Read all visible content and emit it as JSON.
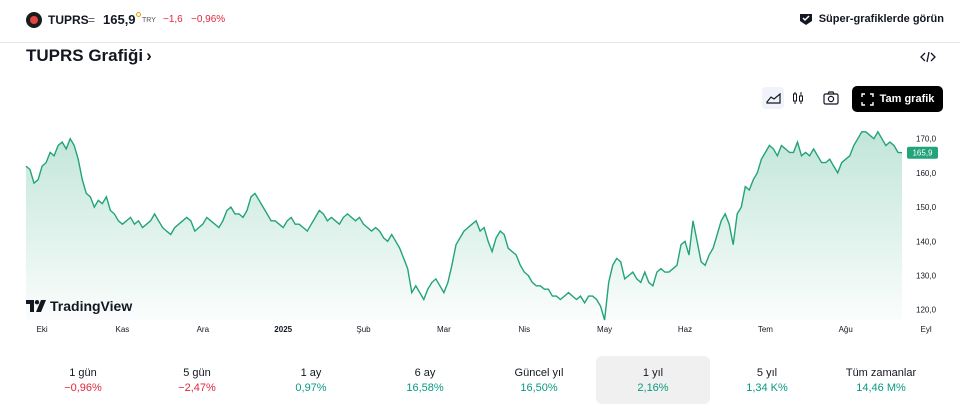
{
  "topbar": {
    "symbol": "TUPRS",
    "separator": "=",
    "price": "165,9",
    "currency": "TRY",
    "change": "−1,6",
    "change_pct": "−0,96%",
    "super_chart_label": "Süper-grafiklerde görün"
  },
  "page_title": "TUPRS Grafiği",
  "title_chevron": "›",
  "toolbar": {
    "full_chart_label": "Tam grafik"
  },
  "icons": {
    "logo": "tuprs-logo-icon",
    "super": "super-chart-icon",
    "embed": "embed-code-icon",
    "area": "area-chart-icon",
    "candle": "candlestick-icon",
    "camera": "camera-icon",
    "fullscreen": "fullscreen-icon",
    "tradingview": "tradingview-logo-icon"
  },
  "colors": {
    "line": "#22a37a",
    "down": "#e0263e",
    "up": "#089981",
    "price_label": "#22a37a"
  },
  "branding": {
    "tradingview": "TradingView"
  },
  "chart_data": {
    "type": "area",
    "title": "",
    "xlabel": "",
    "ylabel": "",
    "ylim": [
      117,
      174
    ],
    "y_ticks": [
      "170,0",
      "160,0",
      "150,0",
      "140,0",
      "130,0",
      "120,0"
    ],
    "y_tick_values": [
      170,
      160,
      150,
      140,
      130,
      120
    ],
    "x_tick_labels": [
      "Eki",
      "Kas",
      "Ara",
      "2025",
      "Şub",
      "Mar",
      "Nis",
      "May",
      "Haz",
      "Tem",
      "Ağu",
      "Eyl"
    ],
    "x_tick_index": [
      4,
      24,
      44,
      64,
      84,
      104,
      124,
      144,
      164,
      184,
      204,
      224
    ],
    "last_price_label": "165,9",
    "grid": false,
    "series": [
      {
        "values": [
          162,
          161,
          157,
          158,
          162,
          163,
          166,
          165,
          168,
          169,
          167,
          170,
          168,
          164,
          158,
          154,
          153,
          150,
          152,
          151,
          153,
          149,
          148,
          146,
          145,
          146,
          147,
          145,
          146,
          144,
          145,
          146,
          148,
          146,
          144,
          143,
          142,
          144,
          145,
          146,
          147,
          146,
          143,
          144,
          145,
          147,
          146,
          145,
          144,
          146,
          149,
          150,
          148,
          148,
          147,
          149,
          153,
          154,
          152,
          150,
          148,
          146,
          146,
          145,
          144,
          146,
          147,
          145,
          145,
          144,
          143,
          145,
          147,
          149,
          148,
          146,
          147,
          146,
          145,
          147,
          148,
          147,
          146,
          147,
          145,
          144,
          143,
          144,
          143,
          141,
          140,
          142,
          140,
          138,
          135,
          132,
          125,
          127,
          125,
          123,
          126,
          128,
          129,
          127,
          125,
          128,
          133,
          139,
          141,
          143,
          144,
          145,
          146,
          143,
          144,
          140,
          137,
          141,
          143,
          142,
          138,
          137,
          136,
          133,
          131,
          130,
          128,
          127,
          127,
          126,
          126,
          124,
          124,
          123,
          124,
          125,
          124,
          123,
          124,
          122,
          124,
          124,
          123,
          121,
          117,
          128,
          133,
          135,
          134,
          129,
          130,
          131,
          129,
          128,
          131,
          128,
          127,
          131,
          132,
          131,
          131,
          132,
          133,
          139,
          140,
          136,
          146,
          140,
          134,
          133,
          136,
          138,
          142,
          146,
          148,
          145,
          139,
          148,
          150,
          156,
          155,
          158,
          160,
          164,
          166,
          168,
          167,
          165,
          168,
          167,
          166,
          166,
          169,
          165,
          166,
          165,
          167,
          165,
          163,
          163,
          164,
          162,
          160,
          163,
          164,
          165,
          168,
          170,
          172,
          172,
          171,
          170,
          172,
          170,
          168,
          169,
          168,
          166,
          165.9
        ]
      }
    ]
  },
  "periods": [
    {
      "label": "1 gün",
      "value": "−0,96%",
      "trend": "down"
    },
    {
      "label": "5 gün",
      "value": "−2,47%",
      "trend": "down"
    },
    {
      "label": "1 ay",
      "value": "0,97%",
      "trend": "up"
    },
    {
      "label": "6 ay",
      "value": "16,58%",
      "trend": "up"
    },
    {
      "label": "Güncel yıl",
      "value": "16,50%",
      "trend": "up"
    },
    {
      "label": "1 yıl",
      "value": "2,16%",
      "trend": "up",
      "active": true
    },
    {
      "label": "5 yıl",
      "value": "1,34 K%",
      "trend": "up"
    },
    {
      "label": "Tüm zamanlar",
      "value": "14,46 M%",
      "trend": "up"
    }
  ]
}
